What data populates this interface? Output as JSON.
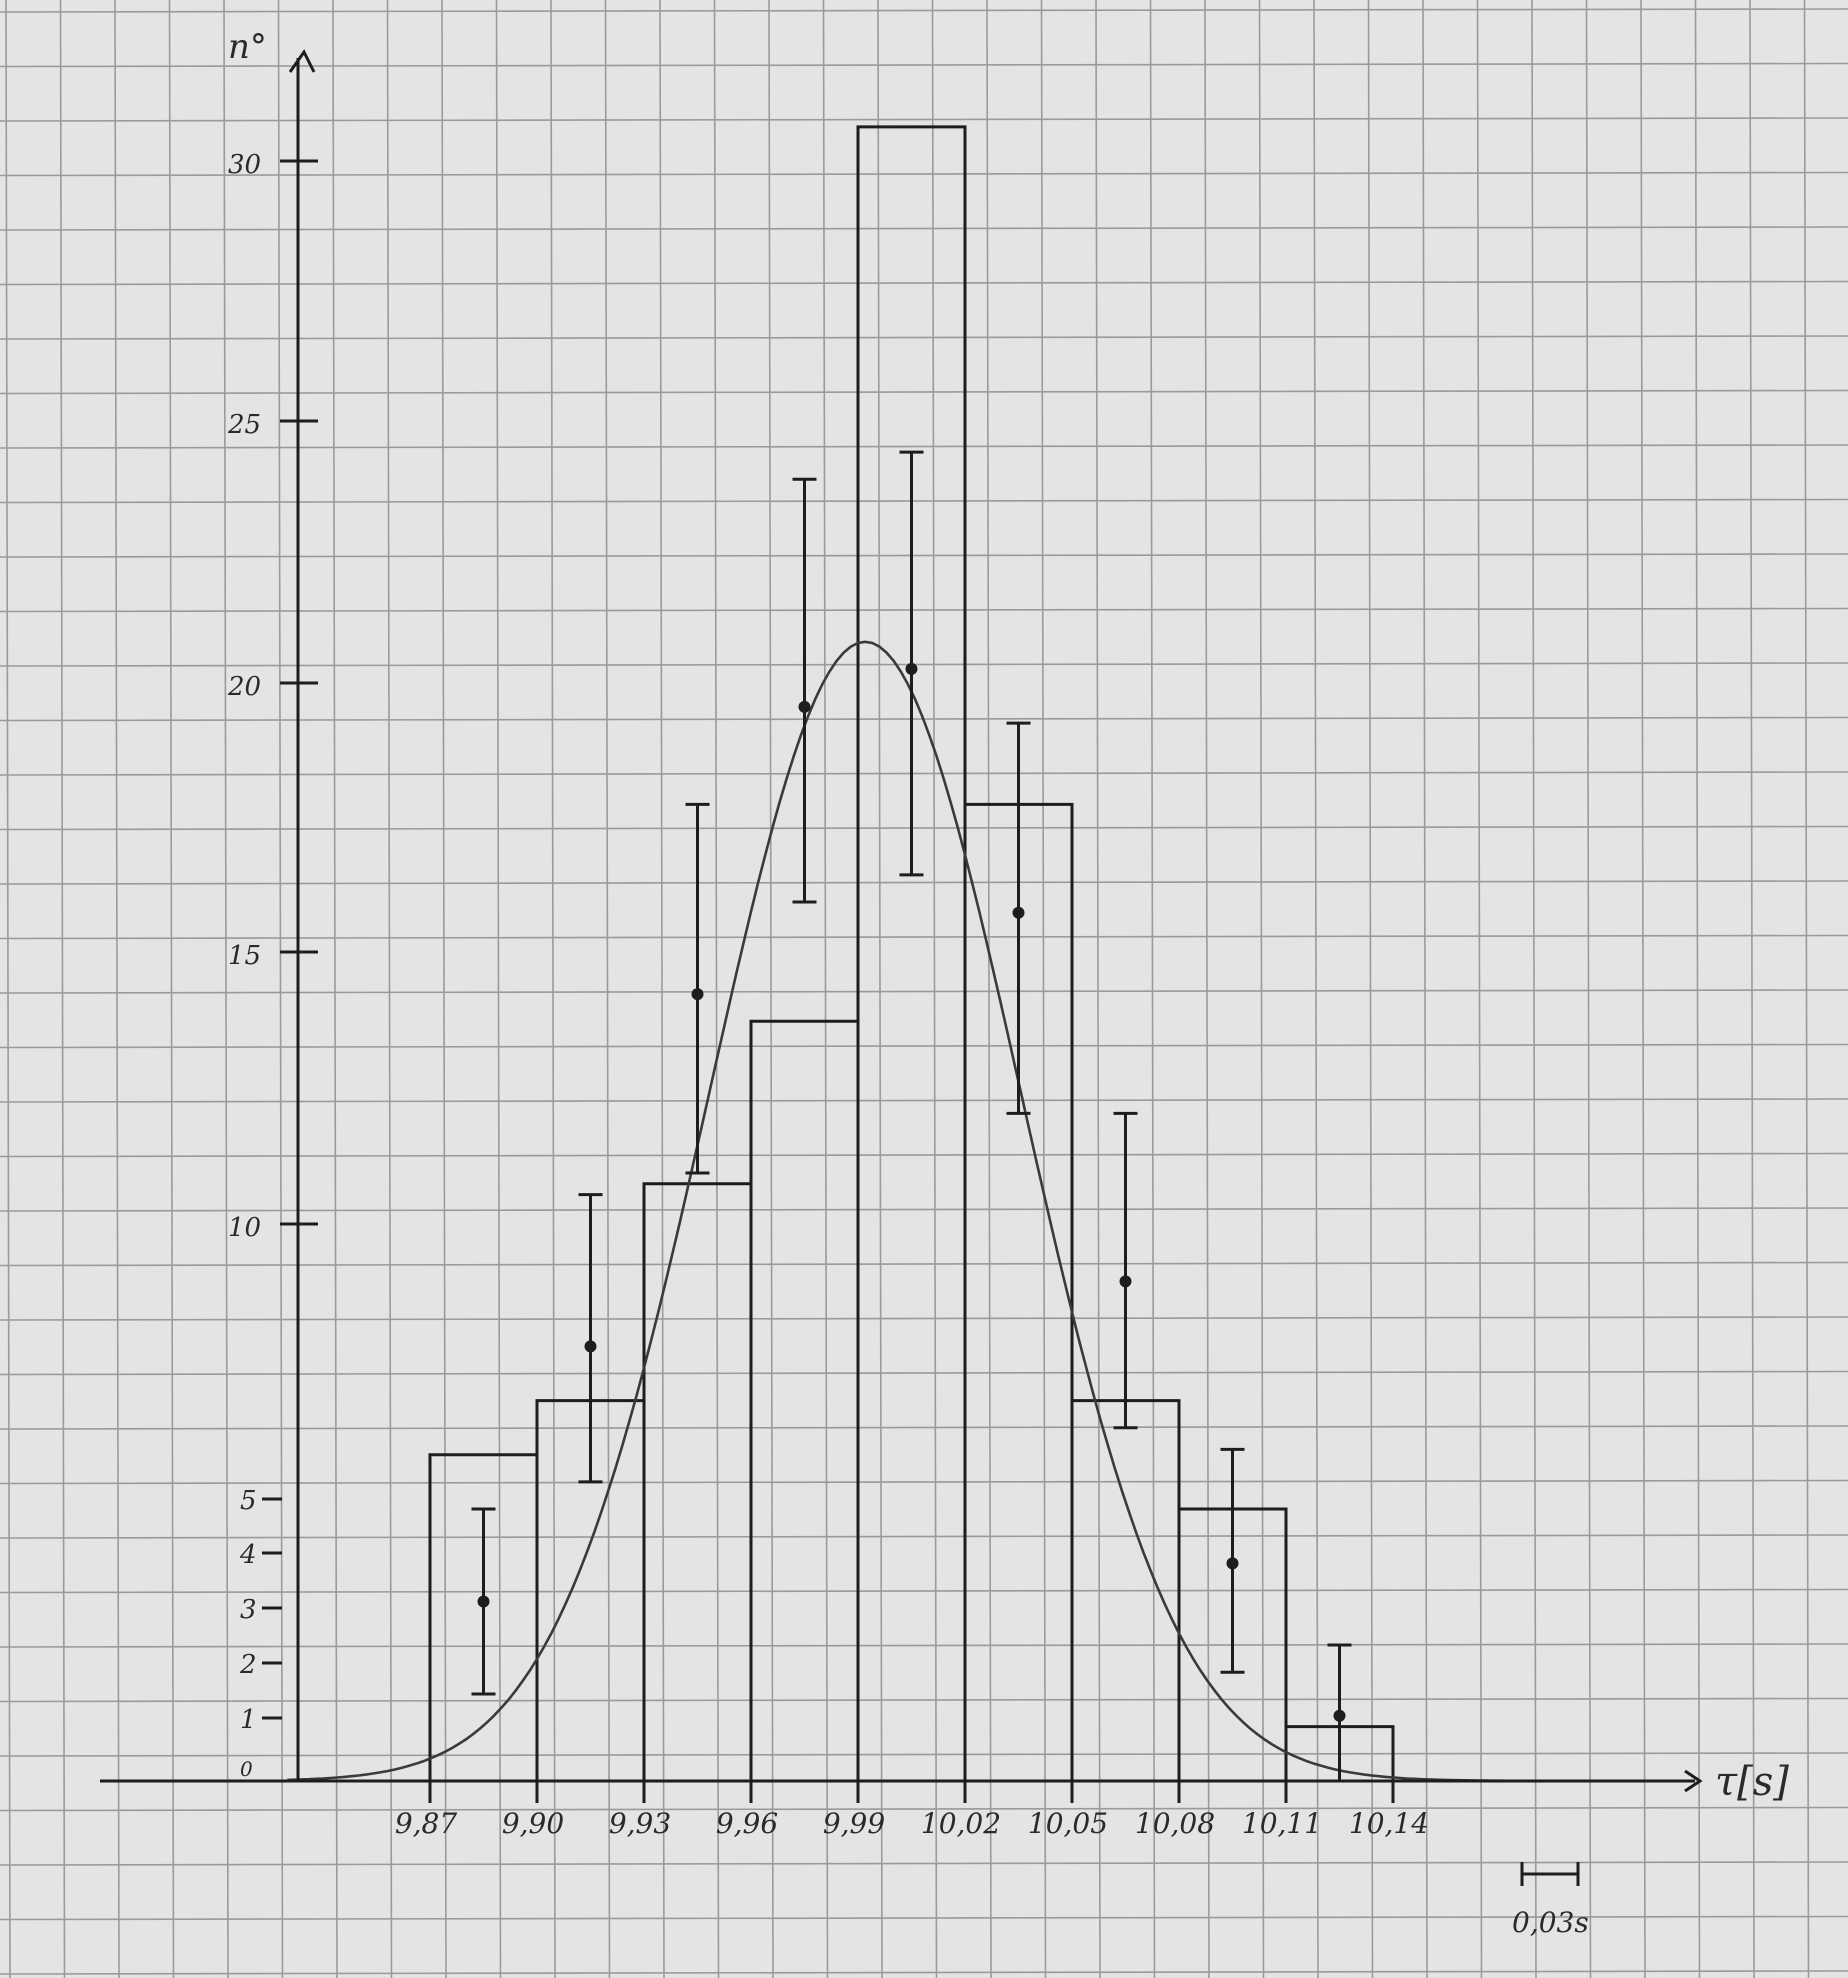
{
  "paper": {
    "grid_color": "#9a9a9a",
    "ink_color": "#1d1d1d",
    "background": "#e4e4e2"
  },
  "chart_data": {
    "type": "bar",
    "title": "",
    "ylabel": "n°",
    "xlabel": "τ[s]",
    "x_ticks": [
      "9,87",
      "9,90",
      "9,93",
      "9,96",
      "9,99",
      "10,02",
      "10,05",
      "10,08",
      "10,11",
      "10,14"
    ],
    "y_ticks_major": [
      "30",
      "25",
      "20",
      "15",
      "10"
    ],
    "y_ticks_minor": [
      "5",
      "4",
      "3",
      "2",
      "1",
      "0"
    ],
    "bin_width_label": "0,03s",
    "xlim": [
      9.82,
      10.22
    ],
    "ylim": [
      0,
      32
    ],
    "bins": [
      {
        "left": 9.87,
        "right": 9.9,
        "count": 6
      },
      {
        "left": 9.9,
        "right": 9.93,
        "count": 7
      },
      {
        "left": 9.93,
        "right": 9.96,
        "count": 11
      },
      {
        "left": 9.96,
        "right": 9.99,
        "count": 14
      },
      {
        "left": 9.99,
        "right": 10.02,
        "count": 30.5
      },
      {
        "left": 10.02,
        "right": 10.05,
        "count": 18
      },
      {
        "left": 10.05,
        "right": 10.08,
        "count": 7
      },
      {
        "left": 10.08,
        "right": 10.11,
        "count": 5
      },
      {
        "left": 10.11,
        "right": 10.14,
        "count": 1
      }
    ],
    "fit_points": [
      {
        "x": 9.885,
        "y": 3.3,
        "err_low": 1.6,
        "err_high": 5.0
      },
      {
        "x": 9.915,
        "y": 8.0,
        "err_low": 5.5,
        "err_high": 10.8
      },
      {
        "x": 9.945,
        "y": 14.5,
        "err_low": 11.2,
        "err_high": 18.0
      },
      {
        "x": 9.975,
        "y": 19.8,
        "err_low": 16.2,
        "err_high": 24.0
      },
      {
        "x": 10.005,
        "y": 20.5,
        "err_low": 16.7,
        "err_high": 24.5
      },
      {
        "x": 10.035,
        "y": 16.0,
        "err_low": 12.3,
        "err_high": 19.5
      },
      {
        "x": 10.065,
        "y": 9.2,
        "err_low": 6.5,
        "err_high": 12.3
      },
      {
        "x": 10.095,
        "y": 4.0,
        "err_low": 2.0,
        "err_high": 6.1
      },
      {
        "x": 10.125,
        "y": 1.2,
        "err_low": 0.0,
        "err_high": 2.5
      }
    ],
    "gaussian": {
      "mean": 9.992,
      "sigma": 0.0435,
      "peak": 21.0
    },
    "grid": true
  }
}
